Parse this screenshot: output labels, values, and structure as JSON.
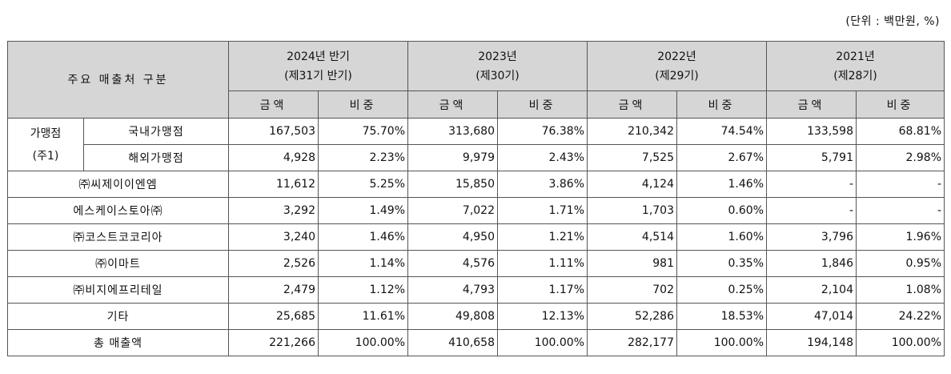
{
  "unit_note": "(단위 : 백만원, %)",
  "header": {
    "category": "주요 매출처 구분",
    "periods": [
      {
        "line1": "2024년 반기",
        "line2": "(제31기 반기)"
      },
      {
        "line1": "2023년",
        "line2": "(제30기)"
      },
      {
        "line1": "2022년",
        "line2": "(제29기)"
      },
      {
        "line1": "2021년",
        "line2": "(제28기)"
      }
    ],
    "amount": "금액",
    "ratio": "비중"
  },
  "group": {
    "line1": "가맹점",
    "line2": "(주1)"
  },
  "rows": [
    {
      "label": "국내가맹점",
      "v": [
        "167,503",
        "75.70%",
        "313,680",
        "76.38%",
        "210,342",
        "74.54%",
        "133,598",
        "68.81%"
      ]
    },
    {
      "label": "해외가맹점",
      "v": [
        "4,928",
        "2.23%",
        "9,979",
        "2.43%",
        "7,525",
        "2.67%",
        "5,791",
        "2.98%"
      ]
    },
    {
      "label": "㈜씨제이이엔엠",
      "v": [
        "11,612",
        "5.25%",
        "15,850",
        "3.86%",
        "4,124",
        "1.46%",
        "-",
        "-"
      ]
    },
    {
      "label": "에스케이스토아㈜",
      "v": [
        "3,292",
        "1.49%",
        "7,022",
        "1.71%",
        "1,703",
        "0.60%",
        "-",
        "-"
      ]
    },
    {
      "label": "㈜코스트코코리아",
      "v": [
        "3,240",
        "1.46%",
        "4,950",
        "1.21%",
        "4,514",
        "1.60%",
        "3,796",
        "1.96%"
      ]
    },
    {
      "label": "㈜이마트",
      "v": [
        "2,526",
        "1.14%",
        "4,576",
        "1.11%",
        "981",
        "0.35%",
        "1,846",
        "0.95%"
      ]
    },
    {
      "label": "㈜비지에프리테일",
      "v": [
        "2,479",
        "1.12%",
        "4,793",
        "1.17%",
        "702",
        "0.25%",
        "2,104",
        "1.08%"
      ]
    },
    {
      "label": "기타",
      "v": [
        "25,685",
        "11.61%",
        "49,808",
        "12.13%",
        "52,286",
        "18.53%",
        "47,014",
        "24.22%"
      ]
    },
    {
      "label": "총 매출액",
      "v": [
        "221,266",
        "100.00%",
        "410,658",
        "100.00%",
        "282,177",
        "100.00%",
        "194,148",
        "100.00%"
      ]
    }
  ]
}
